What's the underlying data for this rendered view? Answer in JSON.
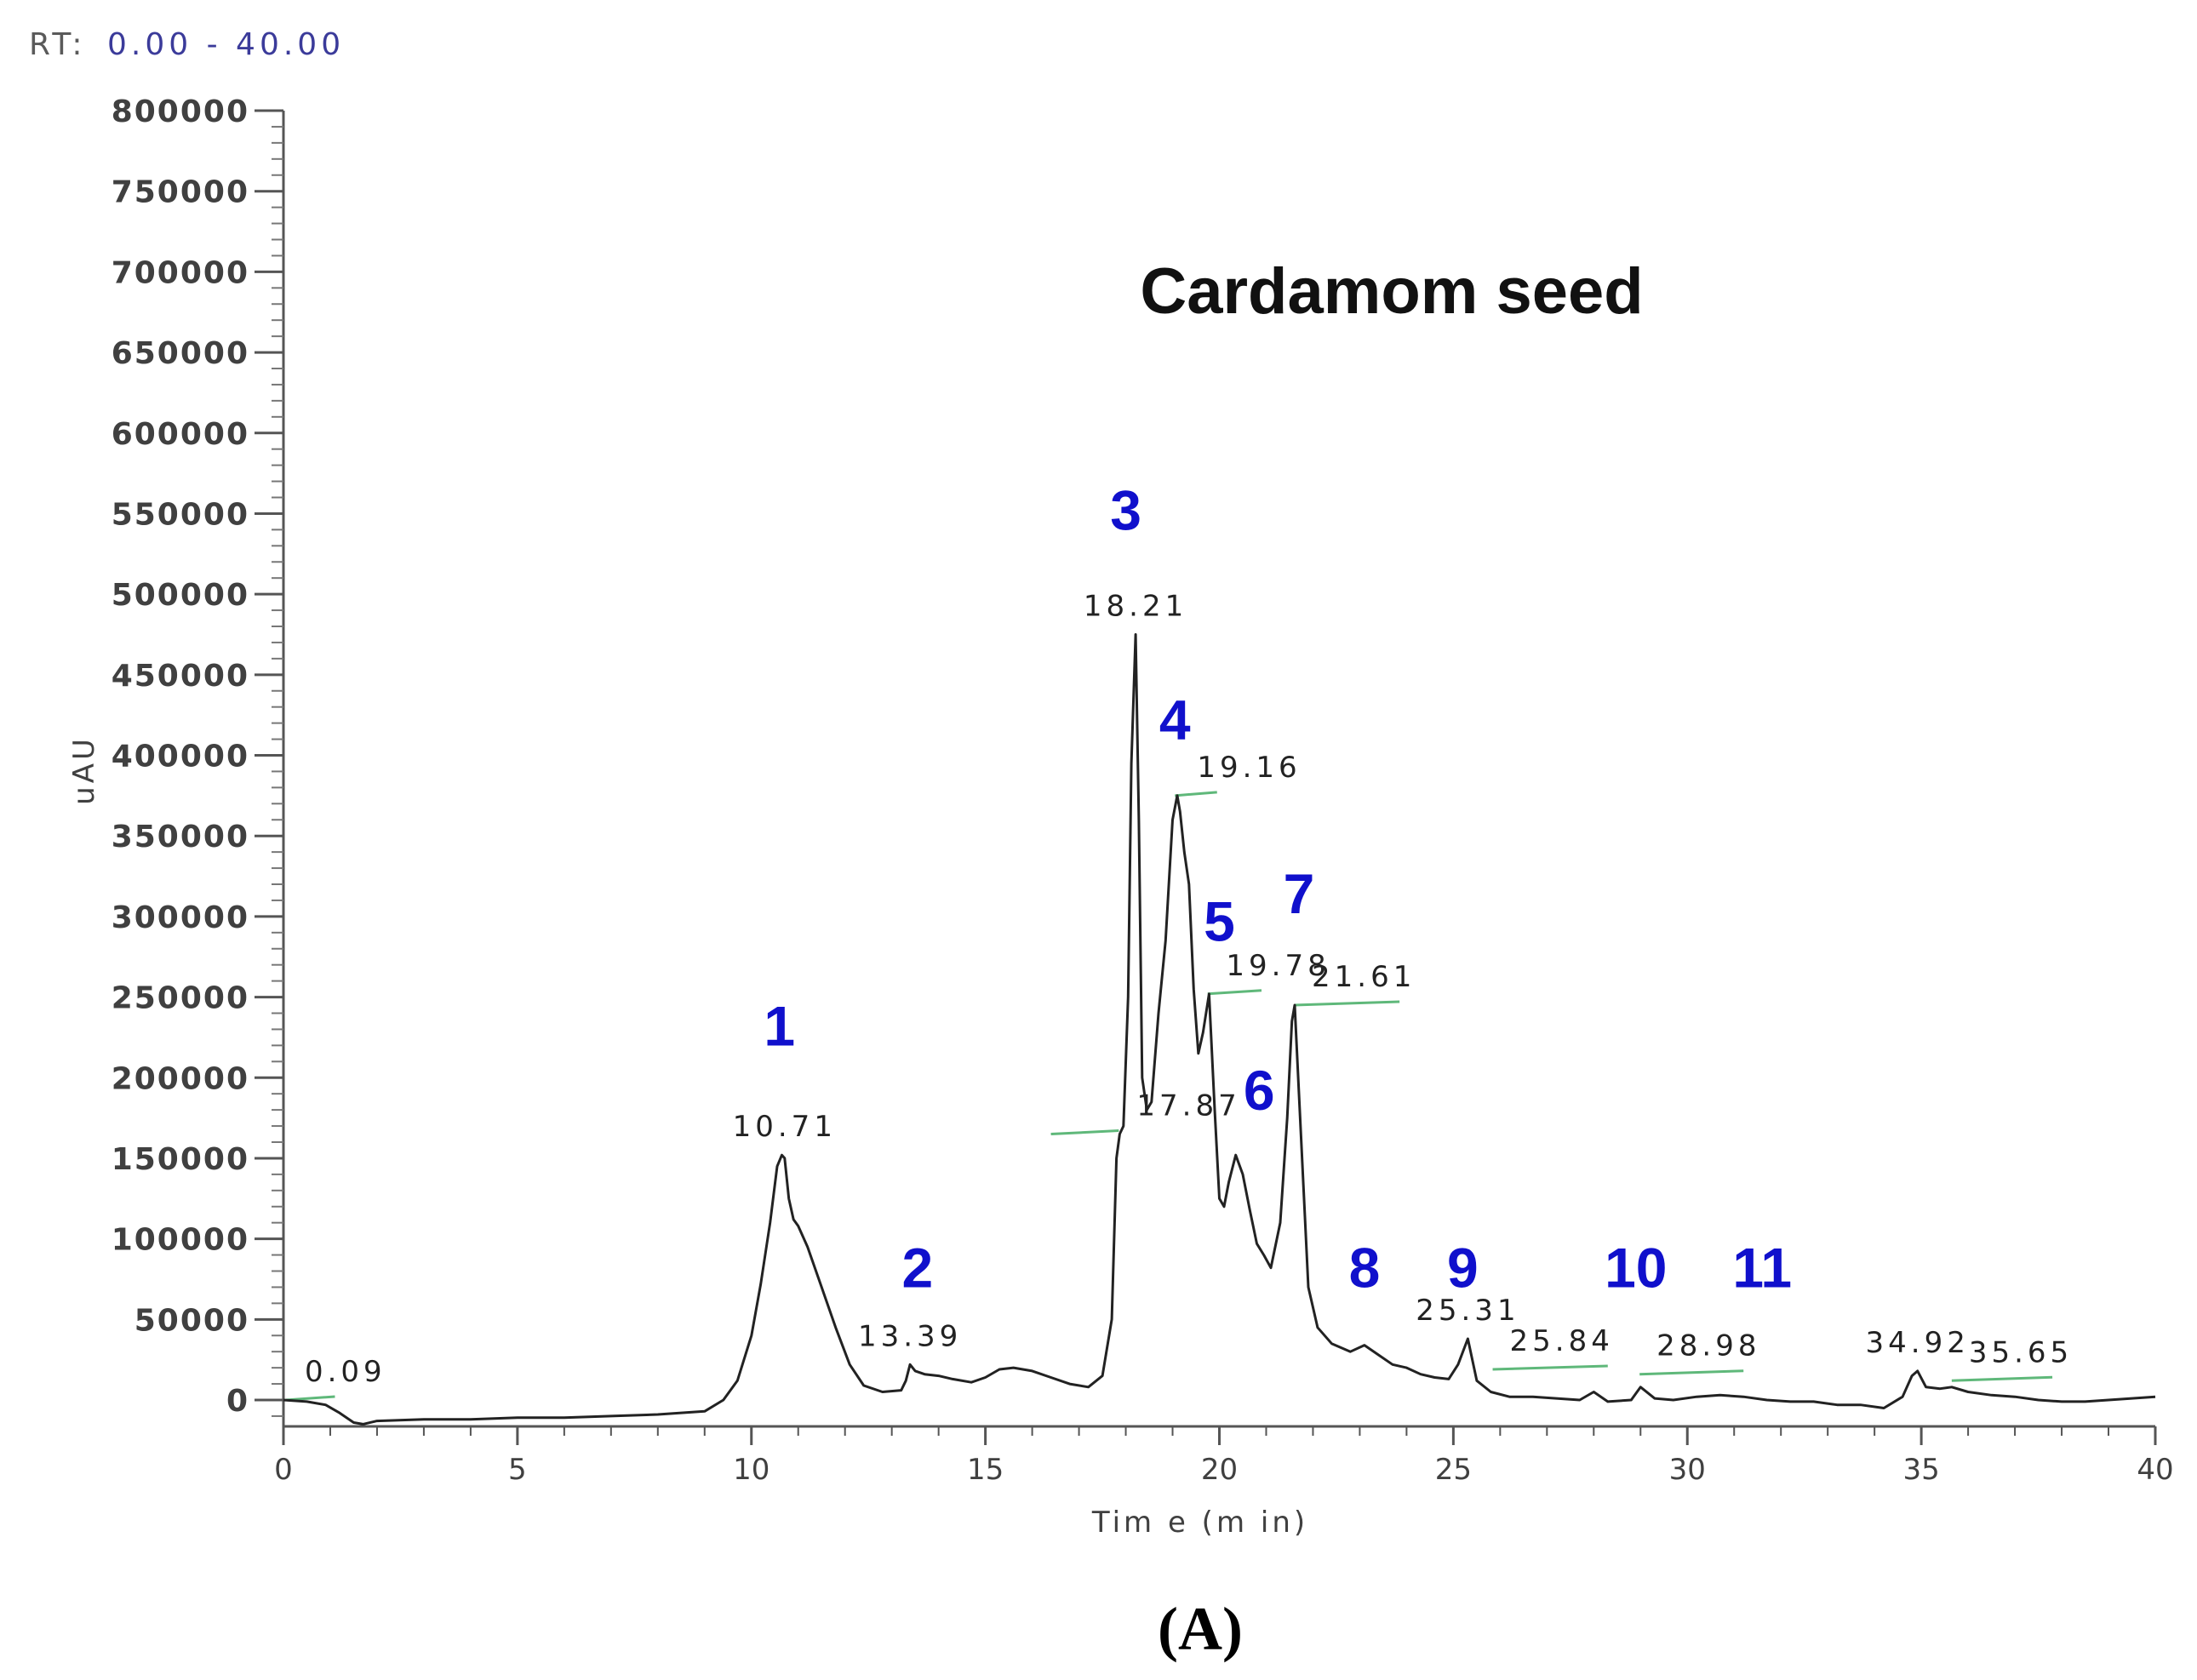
{
  "header": {
    "rt_prefix": "RT:",
    "rt_range": "0.00 - 40.00"
  },
  "panel_label": "(A)",
  "chart_data": {
    "type": "line",
    "title": "Cardamom seed",
    "xlabel": "Tim e (m in)",
    "ylabel": "uAU",
    "xlim": [
      0,
      40
    ],
    "ylim": [
      -20000,
      800000
    ],
    "x_ticks": [
      0,
      5,
      10,
      15,
      20,
      25,
      30,
      35,
      40
    ],
    "x_tick_labels": [
      "0",
      "5",
      "10",
      "15",
      "20",
      "25",
      "30",
      "35",
      "40"
    ],
    "y_ticks": [
      0,
      50000,
      100000,
      150000,
      200000,
      250000,
      300000,
      350000,
      400000,
      450000,
      500000,
      550000,
      600000,
      650000,
      700000,
      750000,
      800000
    ],
    "y_tick_labels": [
      "0",
      "50000",
      "100000",
      "150000",
      "200000",
      "250000",
      "300000",
      "350000",
      "400000",
      "450000",
      "500000",
      "550000",
      "600000",
      "650000",
      "700000",
      "750000",
      "800000"
    ],
    "grid": false,
    "line_color": "#222222",
    "baseline_color": "#5fb87a",
    "peak_label_color": "#1010cc",
    "series": [
      {
        "x": [
          0,
          0.5,
          0.9,
          1.2,
          1.5,
          1.7,
          2.0,
          3,
          4,
          5,
          6,
          7,
          8,
          9,
          9.4,
          9.7,
          10.0,
          10.2,
          10.4,
          10.55,
          10.65,
          10.71,
          10.8,
          10.9,
          11.0,
          11.2,
          11.5,
          11.8,
          12.1,
          12.4,
          12.8,
          13.2,
          13.3,
          13.39,
          13.5,
          13.7,
          14.0,
          14.3,
          14.7,
          15.0,
          15.3,
          15.6,
          16.0,
          16.4,
          16.8,
          17.2,
          17.5,
          17.7,
          17.8,
          17.87,
          17.95,
          18.05,
          18.12,
          18.21,
          18.28,
          18.35,
          18.45,
          18.55,
          18.7,
          18.85,
          19.0,
          19.1,
          19.16,
          19.25,
          19.35,
          19.45,
          19.55,
          19.65,
          19.78,
          19.9,
          20.0,
          20.1,
          20.2,
          20.35,
          20.5,
          20.65,
          20.8,
          20.95,
          21.1,
          21.3,
          21.45,
          21.55,
          21.61,
          21.7,
          21.8,
          21.9,
          22.1,
          22.4,
          22.8,
          23.1,
          23.4,
          23.7,
          24.0,
          24.3,
          24.6,
          24.9,
          25.1,
          25.31,
          25.5,
          25.8,
          26.2,
          26.7,
          27.2,
          27.7,
          28.0,
          28.3,
          28.8,
          29.0,
          29.3,
          29.7,
          30.2,
          30.7,
          31.2,
          31.7,
          32.2,
          32.7,
          33.2,
          33.7,
          34.2,
          34.6,
          34.8,
          34.92,
          35.1,
          35.4,
          35.65,
          36.0,
          36.5,
          37.0,
          37.5,
          38.0,
          38.5,
          39.0,
          39.5,
          40.0
        ],
        "y": [
          0,
          -1000,
          -3000,
          -8000,
          -14000,
          -15000,
          -13000,
          -12000,
          -12000,
          -11000,
          -11000,
          -10000,
          -9000,
          -7000,
          0,
          12000,
          40000,
          72000,
          110000,
          145000,
          152000,
          150000,
          125000,
          112000,
          108000,
          95000,
          70000,
          45000,
          22000,
          9000,
          5000,
          6000,
          12000,
          22000,
          18000,
          16000,
          15000,
          13000,
          11000,
          14000,
          19000,
          20000,
          18000,
          14000,
          10000,
          8000,
          15000,
          50000,
          150000,
          165000,
          170000,
          250000,
          395000,
          475000,
          360000,
          200000,
          180000,
          185000,
          240000,
          285000,
          360000,
          375000,
          365000,
          340000,
          320000,
          255000,
          215000,
          228000,
          252000,
          180000,
          125000,
          120000,
          135000,
          152000,
          140000,
          118000,
          97000,
          90000,
          82000,
          110000,
          175000,
          235000,
          245000,
          190000,
          130000,
          70000,
          45000,
          35000,
          30000,
          34000,
          28000,
          22000,
          20000,
          16000,
          14000,
          13000,
          22000,
          38000,
          12000,
          5000,
          2000,
          2000,
          1000,
          0,
          5000,
          -1000,
          0,
          8000,
          1000,
          0,
          2000,
          3000,
          2000,
          0,
          -1000,
          -1000,
          -3000,
          -3000,
          -5000,
          2000,
          15000,
          18000,
          8000,
          7000,
          8000,
          5000,
          3000,
          2000,
          0,
          -1000,
          -1000,
          0,
          1000,
          2000
        ]
      }
    ],
    "rt_labels": [
      {
        "text": "0.09",
        "x": 0.09,
        "y": 0,
        "line": [
          0.05,
          1.1
        ]
      },
      {
        "text": "10.71",
        "x": 10.71,
        "y": 152000
      },
      {
        "text": "13.39",
        "x": 13.39,
        "y": 22000
      },
      {
        "text": "17.87",
        "x": 17.87,
        "y": 165000,
        "line": [
          16.4,
          17.85
        ]
      },
      {
        "text": "18.21",
        "x": 18.21,
        "y": 475000
      },
      {
        "text": "19.16",
        "x": 19.16,
        "y": 375000,
        "line": [
          19.05,
          19.95
        ]
      },
      {
        "text": "19.78",
        "x": 19.78,
        "y": 252000,
        "line": [
          19.75,
          20.9
        ]
      },
      {
        "text": "21.61",
        "x": 21.61,
        "y": 245000,
        "line": [
          21.6,
          23.85
        ]
      },
      {
        "text": "25.31",
        "x": 25.31,
        "y": 38000
      },
      {
        "text": "25.84",
        "x": 25.84,
        "y": 19000,
        "line": [
          25.84,
          28.3
        ]
      },
      {
        "text": "28.98",
        "x": 28.98,
        "y": 16000,
        "line": [
          28.98,
          31.2
        ]
      },
      {
        "text": "34.92",
        "x": 34.92,
        "y": 18000
      },
      {
        "text": "35.65",
        "x": 35.65,
        "y": 12000,
        "line": [
          35.65,
          37.8
        ]
      }
    ],
    "peak_numbers": [
      {
        "text": "1",
        "x": 10.6,
        "y": 220000
      },
      {
        "text": "2",
        "x": 13.55,
        "y": 70000
      },
      {
        "text": "3",
        "x": 18.0,
        "y": 540000
      },
      {
        "text": "4",
        "x": 19.05,
        "y": 410000
      },
      {
        "text": "5",
        "x": 20.0,
        "y": 285000
      },
      {
        "text": "6",
        "x": 20.85,
        "y": 180000
      },
      {
        "text": "7",
        "x": 21.7,
        "y": 302000
      },
      {
        "text": "8",
        "x": 23.1,
        "y": 70000
      },
      {
        "text": "9",
        "x": 25.2,
        "y": 70000
      },
      {
        "text": "10",
        "x": 28.9,
        "y": 70000
      },
      {
        "text": "11",
        "x": 31.6,
        "y": 70000
      }
    ]
  }
}
